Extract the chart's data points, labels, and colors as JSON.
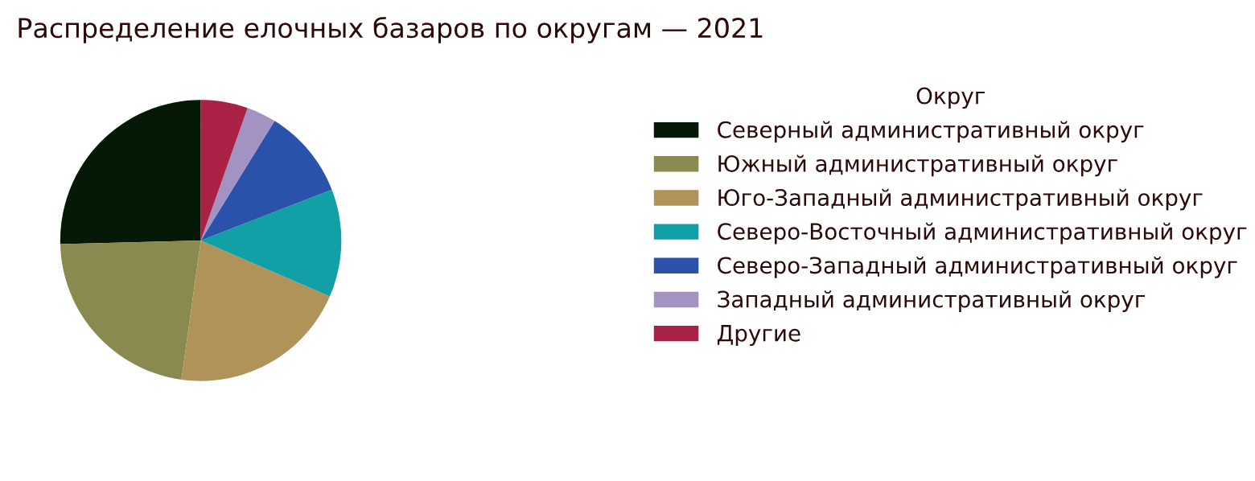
{
  "chart_data": {
    "type": "pie",
    "title": "Распределение елочных базаров по округам — 2021",
    "legend_title": "Округ",
    "legend": "right",
    "categories": [
      "Северный административный округ",
      "Южный административный округ",
      "Юго-Западный административный округ",
      "Северо-Восточный административный округ",
      "Северо-Западный административный округ",
      "Западный административный округ",
      "Другие"
    ],
    "values": [
      25.4,
      22.4,
      20.7,
      12.4,
      10.3,
      3.4,
      5.4
    ],
    "colors": [
      "#061806",
      "#8a8a50",
      "#b09358",
      "#10a0a6",
      "#2b52aa",
      "#a393c3",
      "#a92246"
    ]
  }
}
